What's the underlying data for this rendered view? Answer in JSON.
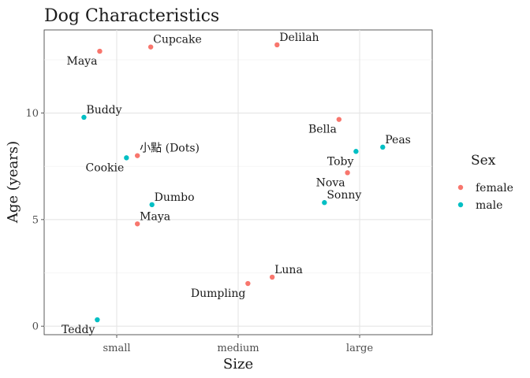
{
  "chart_data": {
    "type": "scatter",
    "title": "Dog Characteristics",
    "xlabel": "Size",
    "ylabel": "Age (years)",
    "categories": [
      "small",
      "medium",
      "large"
    ],
    "ylim": [
      -0.4,
      13.9
    ],
    "y_ticks": [
      0,
      5,
      10
    ],
    "y_tick_labels": [
      "0",
      "5",
      "10"
    ],
    "grid": true,
    "legend": {
      "title": "Sex",
      "position": "right",
      "entries": [
        {
          "name": "female",
          "color": "#F8766D"
        },
        {
          "name": "male",
          "color": "#00BFC4"
        }
      ]
    },
    "points": [
      {
        "label": "Maya",
        "size": "small",
        "jitter": -0.14,
        "age": 12.9,
        "sex": "female",
        "label_pos": "below-left"
      },
      {
        "label": "Cupcake",
        "size": "small",
        "jitter": 0.28,
        "age": 13.1,
        "sex": "female",
        "label_pos": "above-right"
      },
      {
        "label": "Delilah",
        "size": "medium",
        "jitter": 0.32,
        "age": 13.2,
        "sex": "female",
        "label_pos": "above-right"
      },
      {
        "label": "Buddy",
        "size": "small",
        "jitter": -0.27,
        "age": 9.8,
        "sex": "male",
        "label_pos": "above-right"
      },
      {
        "label": "小點 (Dots)",
        "size": "small",
        "jitter": 0.17,
        "age": 8.0,
        "sex": "female",
        "label_pos": "above-right"
      },
      {
        "label": "Cookie",
        "size": "small",
        "jitter": 0.08,
        "age": 7.9,
        "sex": "male",
        "label_pos": "below-left"
      },
      {
        "label": "Dumbo",
        "size": "small",
        "jitter": 0.29,
        "age": 5.7,
        "sex": "male",
        "label_pos": "above-right"
      },
      {
        "label": "Maya",
        "size": "small",
        "jitter": 0.17,
        "age": 4.8,
        "sex": "female",
        "label_pos": "above-right"
      },
      {
        "label": "Teddy",
        "size": "small",
        "jitter": -0.16,
        "age": 0.3,
        "sex": "male",
        "label_pos": "below-left"
      },
      {
        "label": "Dumpling",
        "size": "medium",
        "jitter": 0.08,
        "age": 2.0,
        "sex": "female",
        "label_pos": "below-left"
      },
      {
        "label": "Luna",
        "size": "medium",
        "jitter": 0.28,
        "age": 2.3,
        "sex": "female",
        "label_pos": "above-right"
      },
      {
        "label": "Bella",
        "size": "large",
        "jitter": -0.17,
        "age": 9.7,
        "sex": "female",
        "label_pos": "below-left"
      },
      {
        "label": "Peas",
        "size": "large",
        "jitter": 0.19,
        "age": 8.4,
        "sex": "male",
        "label_pos": "above-right"
      },
      {
        "label": "Toby",
        "size": "large",
        "jitter": -0.03,
        "age": 8.2,
        "sex": "male",
        "label_pos": "below-left"
      },
      {
        "label": "Nova",
        "size": "large",
        "jitter": -0.1,
        "age": 7.2,
        "sex": "female",
        "label_pos": "below-left"
      },
      {
        "label": "Sonny",
        "size": "large",
        "jitter": -0.29,
        "age": 5.8,
        "sex": "male",
        "label_pos": "above-right"
      }
    ]
  }
}
